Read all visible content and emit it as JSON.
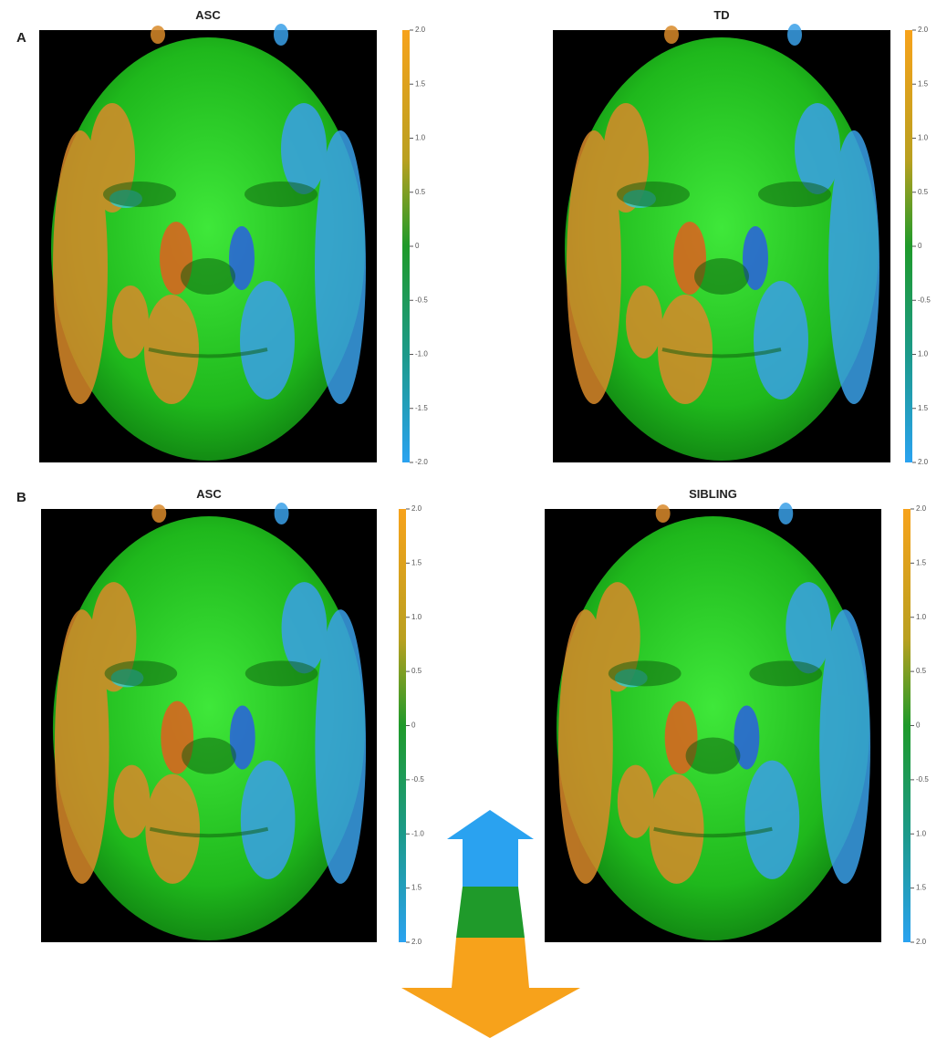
{
  "rows": [
    {
      "label": "A",
      "panels": [
        {
          "title": "ASC",
          "colorbar_ticks": [
            "2.0",
            "1.5",
            "1.0",
            "0.5",
            "0",
            "-0.5",
            "-1.0",
            "-1.5",
            "-2.0"
          ]
        },
        {
          "title": "TD",
          "colorbar_ticks": [
            "2.0",
            "1.5",
            "1.0",
            "0.5",
            "0",
            "-0.5",
            "1.0",
            "1.5",
            "2.0"
          ]
        }
      ]
    },
    {
      "label": "B",
      "panels": [
        {
          "title": "ASC",
          "colorbar_ticks": [
            "2.0",
            "1.5",
            "1.0",
            "0.5",
            "0",
            "-0.5",
            "-1.0",
            "1.5",
            "2.0"
          ]
        },
        {
          "title": "SIBLING",
          "colorbar_ticks": [
            "2.0",
            "1.5",
            "1.0",
            "0.5",
            "0",
            "-0.5",
            "1.0",
            "1.5",
            "2.0"
          ]
        }
      ]
    }
  ]
}
